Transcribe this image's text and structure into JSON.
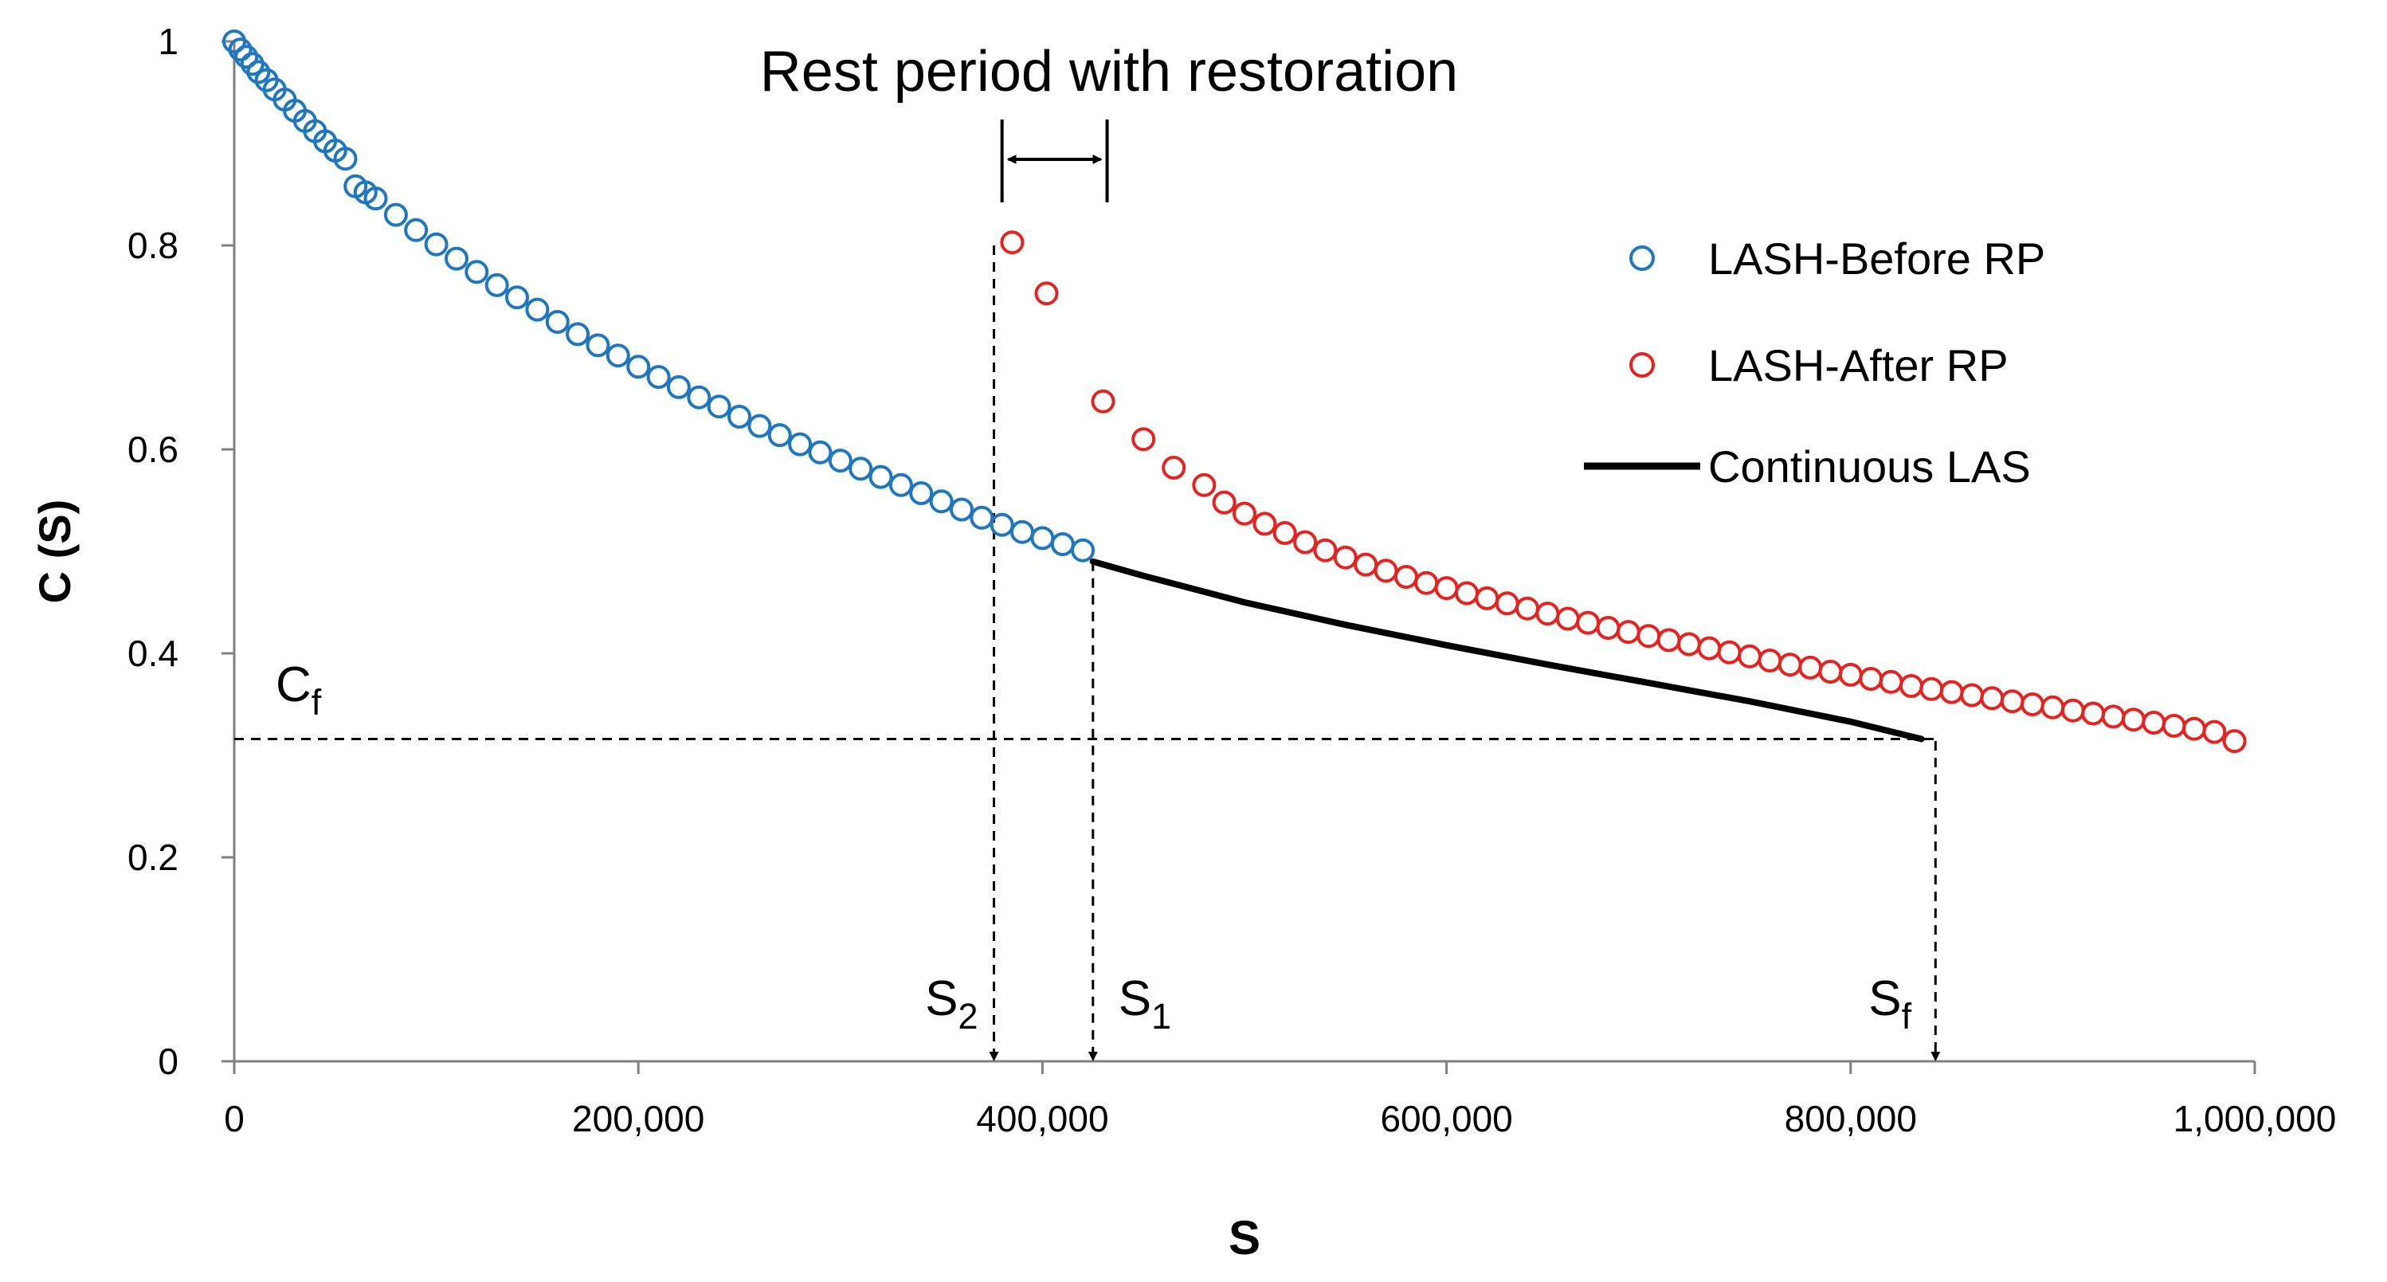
{
  "chart_data": {
    "type": "scatter",
    "title": "",
    "xlabel": "S",
    "ylabel": "C (S)",
    "xlim": [
      0,
      1000000
    ],
    "ylim": [
      0,
      1
    ],
    "x_ticks": [
      0,
      200000,
      400000,
      600000,
      800000,
      1000000
    ],
    "x_tick_labels": [
      "0",
      "200,000",
      "400,000",
      "600,000",
      "800,000",
      "1,000,000"
    ],
    "y_ticks": [
      0,
      0.2,
      0.4,
      0.6,
      0.8,
      1
    ],
    "y_tick_labels": [
      "0",
      "0.2",
      "0.4",
      "0.6",
      "0.8",
      "1"
    ],
    "grid": false,
    "legend_position": "top-right",
    "series": [
      {
        "name": "LASH-Before RP",
        "kind": "marker",
        "color": "#1F77C0",
        "points": [
          [
            0,
            1.0
          ],
          [
            3000,
            0.992
          ],
          [
            6000,
            0.985
          ],
          [
            9000,
            0.978
          ],
          [
            12000,
            0.97
          ],
          [
            16000,
            0.962
          ],
          [
            20000,
            0.953
          ],
          [
            25000,
            0.943
          ],
          [
            30000,
            0.932
          ],
          [
            35000,
            0.922
          ],
          [
            40000,
            0.912
          ],
          [
            45000,
            0.902
          ],
          [
            50000,
            0.893
          ],
          [
            55000,
            0.885
          ],
          [
            60000,
            0.858
          ],
          [
            65000,
            0.852
          ],
          [
            70000,
            0.846
          ],
          [
            80000,
            0.83
          ],
          [
            90000,
            0.815
          ],
          [
            100000,
            0.801
          ],
          [
            110000,
            0.787
          ],
          [
            120000,
            0.774
          ],
          [
            130000,
            0.761
          ],
          [
            140000,
            0.749
          ],
          [
            150000,
            0.737
          ],
          [
            160000,
            0.725
          ],
          [
            170000,
            0.713
          ],
          [
            180000,
            0.702
          ],
          [
            190000,
            0.692
          ],
          [
            200000,
            0.681
          ],
          [
            210000,
            0.671
          ],
          [
            220000,
            0.661
          ],
          [
            230000,
            0.651
          ],
          [
            240000,
            0.642
          ],
          [
            250000,
            0.632
          ],
          [
            260000,
            0.623
          ],
          [
            270000,
            0.614
          ],
          [
            280000,
            0.605
          ],
          [
            290000,
            0.597
          ],
          [
            300000,
            0.589
          ],
          [
            310000,
            0.581
          ],
          [
            320000,
            0.573
          ],
          [
            330000,
            0.565
          ],
          [
            340000,
            0.557
          ],
          [
            350000,
            0.549
          ],
          [
            360000,
            0.541
          ],
          [
            370000,
            0.533
          ],
          [
            380000,
            0.526
          ],
          [
            390000,
            0.519
          ],
          [
            400000,
            0.513
          ],
          [
            410000,
            0.507
          ],
          [
            420000,
            0.501
          ]
        ]
      },
      {
        "name": "LASH-After RP",
        "kind": "marker",
        "color": "#E8231F",
        "points": [
          [
            385000,
            0.803
          ],
          [
            402000,
            0.753
          ],
          [
            430000,
            0.647
          ],
          [
            450000,
            0.61
          ],
          [
            465000,
            0.582
          ],
          [
            480000,
            0.565
          ],
          [
            490000,
            0.548
          ],
          [
            500000,
            0.537
          ],
          [
            510000,
            0.527
          ],
          [
            520000,
            0.518
          ],
          [
            530000,
            0.509
          ],
          [
            540000,
            0.501
          ],
          [
            550000,
            0.494
          ],
          [
            560000,
            0.487
          ],
          [
            570000,
            0.481
          ],
          [
            580000,
            0.475
          ],
          [
            590000,
            0.469
          ],
          [
            600000,
            0.464
          ],
          [
            610000,
            0.459
          ],
          [
            620000,
            0.454
          ],
          [
            630000,
            0.449
          ],
          [
            640000,
            0.444
          ],
          [
            650000,
            0.439
          ],
          [
            660000,
            0.434
          ],
          [
            670000,
            0.43
          ],
          [
            680000,
            0.425
          ],
          [
            690000,
            0.421
          ],
          [
            700000,
            0.417
          ],
          [
            710000,
            0.413
          ],
          [
            720000,
            0.409
          ],
          [
            730000,
            0.405
          ],
          [
            740000,
            0.401
          ],
          [
            750000,
            0.397
          ],
          [
            760000,
            0.393
          ],
          [
            770000,
            0.389
          ],
          [
            780000,
            0.386
          ],
          [
            790000,
            0.382
          ],
          [
            800000,
            0.379
          ],
          [
            810000,
            0.375
          ],
          [
            820000,
            0.372
          ],
          [
            830000,
            0.368
          ],
          [
            840000,
            0.365
          ],
          [
            850000,
            0.362
          ],
          [
            860000,
            0.359
          ],
          [
            870000,
            0.356
          ],
          [
            880000,
            0.353
          ],
          [
            890000,
            0.35
          ],
          [
            900000,
            0.347
          ],
          [
            910000,
            0.344
          ],
          [
            920000,
            0.341
          ],
          [
            930000,
            0.338
          ],
          [
            940000,
            0.335
          ],
          [
            950000,
            0.332
          ],
          [
            960000,
            0.329
          ],
          [
            970000,
            0.326
          ],
          [
            980000,
            0.323
          ],
          [
            990000,
            0.314
          ]
        ]
      },
      {
        "name": "Continuous LAS",
        "kind": "line",
        "color": "#000000",
        "points": [
          [
            425000,
            0.49
          ],
          [
            450000,
            0.476
          ],
          [
            500000,
            0.45
          ],
          [
            550000,
            0.428
          ],
          [
            600000,
            0.408
          ],
          [
            650000,
            0.389
          ],
          [
            700000,
            0.371
          ],
          [
            750000,
            0.353
          ],
          [
            800000,
            0.333
          ],
          [
            835000,
            0.316
          ]
        ]
      }
    ],
    "annotations": {
      "rest_period_label": "Rest period with restoration",
      "rest_period_range": [
        380000,
        432000
      ],
      "s2_base": "S",
      "s2_sub": "2",
      "s2_x": 376000,
      "s2_y": 0.8,
      "s1_base": "S",
      "s1_sub": "1",
      "s1_x": 425000,
      "s1_y": 0.49,
      "sf_base": "S",
      "sf_sub": "f",
      "sf_x": 842000,
      "sf_y": 0.314,
      "cf_base": "C",
      "cf_sub": "f",
      "cf_y": 0.316
    }
  }
}
